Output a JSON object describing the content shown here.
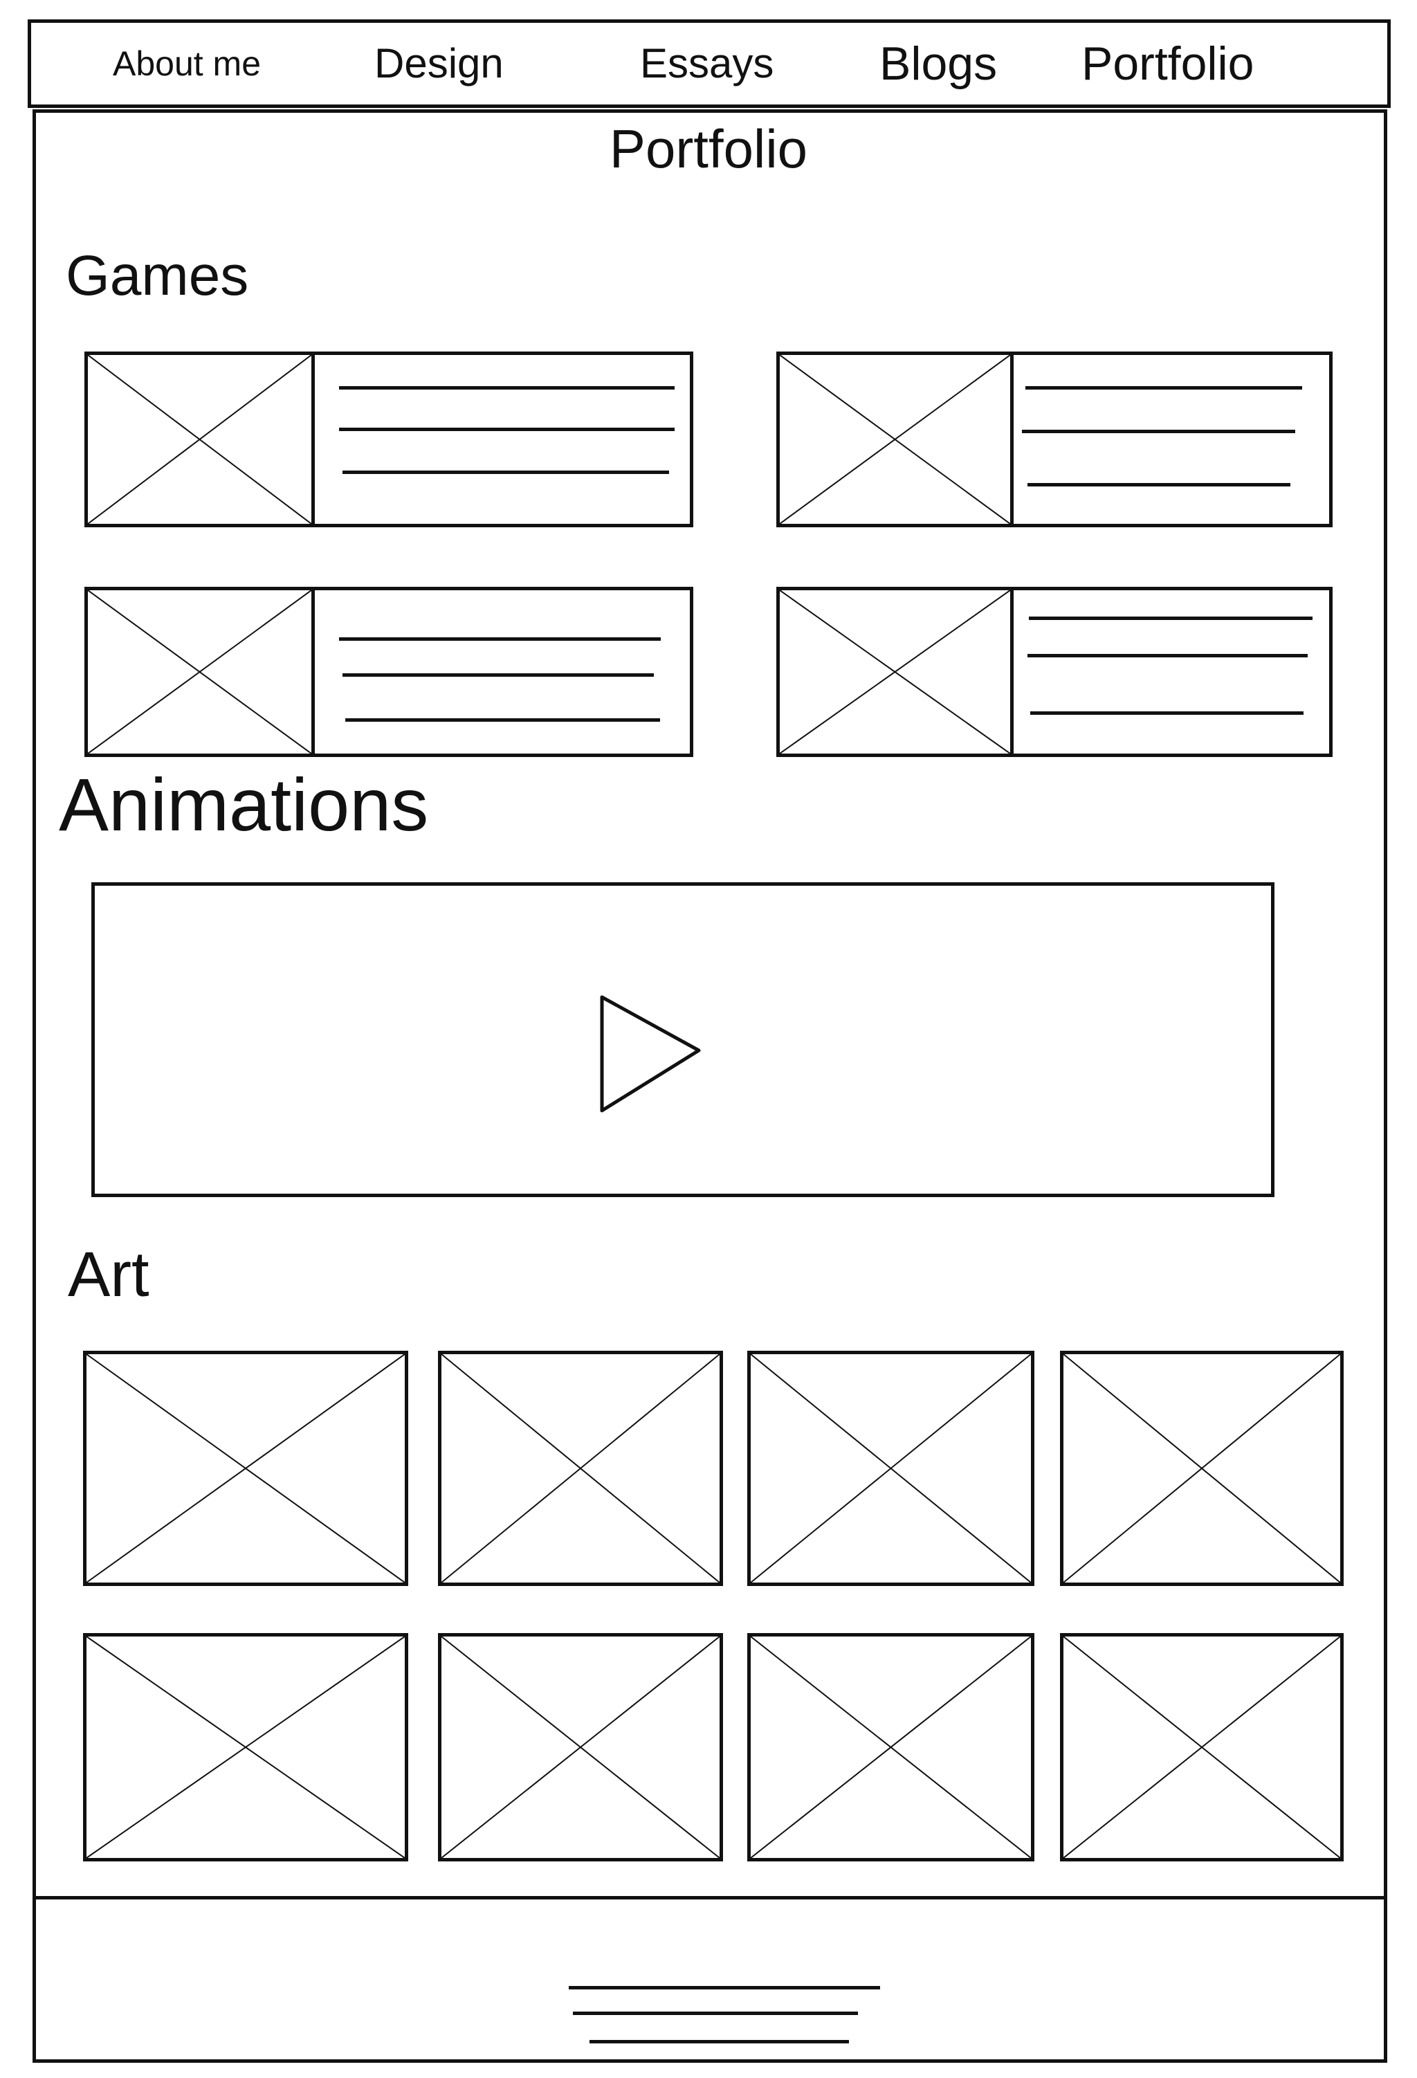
{
  "nav": {
    "items": [
      {
        "label": "About me"
      },
      {
        "label": "Design"
      },
      {
        "label": "Essays"
      },
      {
        "label": "Blogs"
      },
      {
        "label": "Portfolio"
      }
    ]
  },
  "page": {
    "title": "Portfolio"
  },
  "sections": {
    "games": {
      "title": "Games"
    },
    "animations": {
      "title": "Animations"
    },
    "art": {
      "title": "Art"
    }
  },
  "icons": {
    "placeholder": "image-placeholder-icon",
    "play": "play-icon"
  }
}
